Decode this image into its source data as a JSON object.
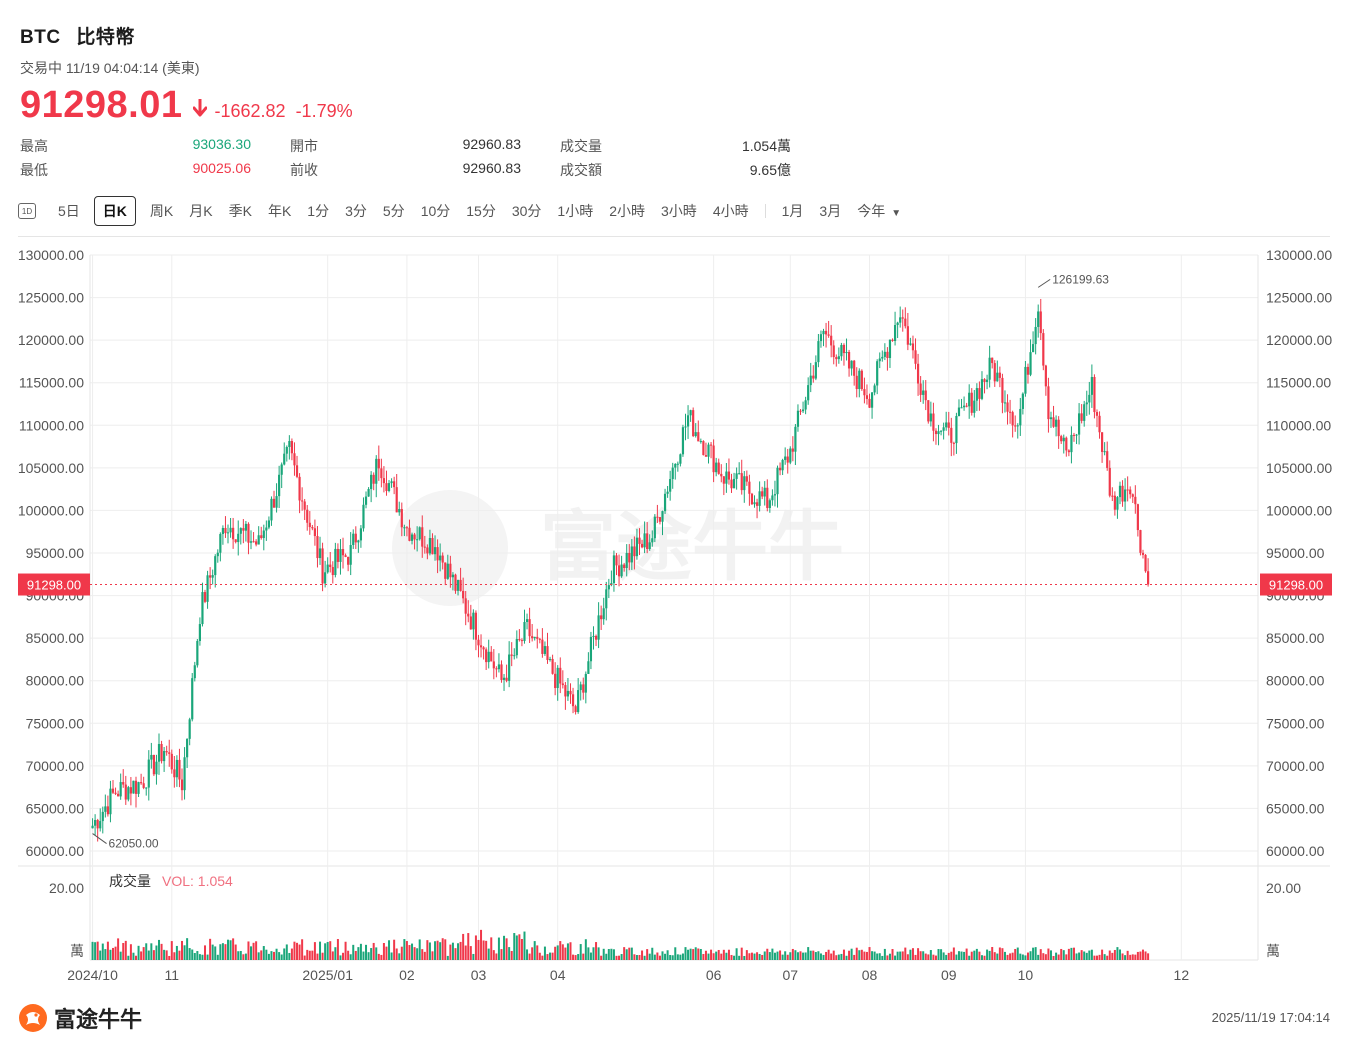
{
  "header": {
    "symbol": "BTC",
    "name": "比特幣",
    "status": "交易中 11/19 04:04:14 (美東)",
    "price": "91298.01",
    "change": "-1662.82",
    "change_pct": "-1.79%"
  },
  "stats": {
    "high_label": "最高",
    "high": "93036.30",
    "low_label": "最低",
    "low": "90025.06",
    "open_label": "開市",
    "open": "92960.83",
    "prev_label": "前收",
    "prev": "92960.83",
    "vol_label": "成交量",
    "vol": "1.054萬",
    "amt_label": "成交額",
    "amt": "9.65億"
  },
  "tabs": [
    "5日",
    "日K",
    "周K",
    "月K",
    "季K",
    "年K",
    "1分",
    "3分",
    "5分",
    "10分",
    "15分",
    "30分",
    "1小時",
    "2小時",
    "3小時",
    "4小時",
    "1月",
    "3月",
    "今年"
  ],
  "tab_icon": "1D",
  "active_tab": "日K",
  "volume_panel": {
    "label": "成交量",
    "vol_text": "VOL: 1.054",
    "top_tick": "20.00",
    "unit": "萬"
  },
  "footer": {
    "brand": "富途牛牛",
    "timestamp": "2025/11/19 17:04:14"
  },
  "colors": {
    "up": "#1aa67a",
    "down": "#f0384a",
    "grid": "#eeeeee",
    "text": "#555555"
  },
  "chart_data": {
    "type": "candlestick",
    "title": "",
    "ylim": [
      60000,
      130000
    ],
    "yticks": [
      130000,
      125000,
      120000,
      115000,
      110000,
      105000,
      100000,
      95000,
      90000,
      85000,
      80000,
      75000,
      70000,
      65000,
      60000
    ],
    "ytick_labels": [
      "130000.00",
      "125000.00",
      "120000.00",
      "115000.00",
      "110000.00",
      "105000.00",
      "100000.00",
      "95000.00",
      "90000.00",
      "85000.00",
      "80000.00",
      "75000.00",
      "70000.00",
      "65000.00",
      "60000.00"
    ],
    "x_start": "2024-09-30",
    "x_end": "2025-12-31",
    "xticks": [
      {
        "date": "2024-10-01",
        "label": "2024/10"
      },
      {
        "date": "2024-11-01",
        "label": "11"
      },
      {
        "date": "2025-01-01",
        "label": "2025/01"
      },
      {
        "date": "2025-02-01",
        "label": "02"
      },
      {
        "date": "2025-03-01",
        "label": "03"
      },
      {
        "date": "2025-04-01",
        "label": "04"
      },
      {
        "date": "2025-06-01",
        "label": "06"
      },
      {
        "date": "2025-07-01",
        "label": "07"
      },
      {
        "date": "2025-08-01",
        "label": "08"
      },
      {
        "date": "2025-09-01",
        "label": "09"
      },
      {
        "date": "2025-10-01",
        "label": "10"
      },
      {
        "date": "2025-12-01",
        "label": "12"
      }
    ],
    "price_line": {
      "value": 91298.0,
      "label": "91298.00"
    },
    "annotations": [
      {
        "label": "126199.63",
        "date": "2025-10-06",
        "value": 126199.63
      },
      {
        "label": "62050.00",
        "date": "2024-10-01",
        "value": 62050.0
      }
    ],
    "close_path": [
      {
        "date": "2024-10-01",
        "close": 63000
      },
      {
        "date": "2024-10-10",
        "close": 67000
      },
      {
        "date": "2024-10-20",
        "close": 68000
      },
      {
        "date": "2024-10-29",
        "close": 72000
      },
      {
        "date": "2024-11-05",
        "close": 68000
      },
      {
        "date": "2024-11-12",
        "close": 88000
      },
      {
        "date": "2024-11-22",
        "close": 98500
      },
      {
        "date": "2024-12-05",
        "close": 96000
      },
      {
        "date": "2024-12-17",
        "close": 107000
      },
      {
        "date": "2024-12-30",
        "close": 93000
      },
      {
        "date": "2025-01-10",
        "close": 95000
      },
      {
        "date": "2025-01-21",
        "close": 106000
      },
      {
        "date": "2025-02-01",
        "close": 98000
      },
      {
        "date": "2025-02-12",
        "close": 96000
      },
      {
        "date": "2025-02-25",
        "close": 88000
      },
      {
        "date": "2025-03-10",
        "close": 80000
      },
      {
        "date": "2025-03-20",
        "close": 86000
      },
      {
        "date": "2025-04-08",
        "close": 76500
      },
      {
        "date": "2025-04-22",
        "close": 93000
      },
      {
        "date": "2025-05-08",
        "close": 97000
      },
      {
        "date": "2025-05-22",
        "close": 111000
      },
      {
        "date": "2025-06-05",
        "close": 104000
      },
      {
        "date": "2025-06-22",
        "close": 101000
      },
      {
        "date": "2025-07-01",
        "close": 107000
      },
      {
        "date": "2025-07-14",
        "close": 121000
      },
      {
        "date": "2025-08-01",
        "close": 113500
      },
      {
        "date": "2025-08-13",
        "close": 123500
      },
      {
        "date": "2025-08-25",
        "close": 111000
      },
      {
        "date": "2025-09-01",
        "close": 108500
      },
      {
        "date": "2025-09-18",
        "close": 117000
      },
      {
        "date": "2025-09-28",
        "close": 110000
      },
      {
        "date": "2025-10-06",
        "close": 124500
      },
      {
        "date": "2025-10-10",
        "close": 112000
      },
      {
        "date": "2025-10-17",
        "close": 106500
      },
      {
        "date": "2025-10-27",
        "close": 114500
      },
      {
        "date": "2025-11-04",
        "close": 101000
      },
      {
        "date": "2025-11-11",
        "close": 103500
      },
      {
        "date": "2025-11-18",
        "close": 91298
      }
    ]
  }
}
